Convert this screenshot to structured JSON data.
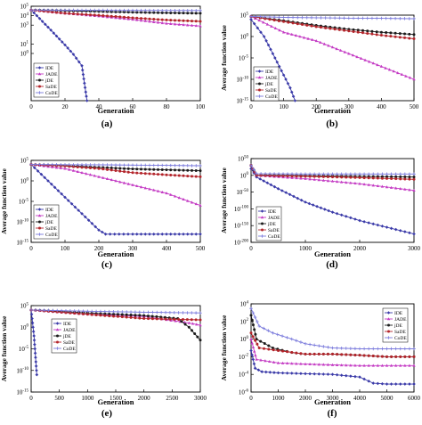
{
  "legend_colors": {
    "IDE": "#3a3aa8",
    "JADE": "#c43cc4",
    "jDE": "#1a1a1a",
    "SaDE": "#b3242a",
    "CoDE": "#7b7bdc"
  },
  "chart_data": [
    {
      "type": "line",
      "panel_label": "(a)",
      "xlabel": "Generation",
      "ylabel": "",
      "scale": "log",
      "ylim": [
        1e-05,
        100000.0
      ],
      "xlim": [
        0,
        100
      ],
      "x_ticks": [
        "0",
        "20",
        "40",
        "60",
        "80",
        "100"
      ],
      "y_ticks": [
        "10^5",
        "10^4",
        "10^3",
        "10^1",
        "10^0"
      ],
      "legend": [
        "IDE",
        "JADE",
        "jDE",
        "SaDE",
        "CoDE"
      ],
      "series": [
        {
          "name": "IDE",
          "x": [
            0,
            5,
            10,
            15,
            20,
            25,
            30,
            33
          ],
          "y": [
            40000,
            5000,
            600,
            70,
            8,
            0.8,
            0.05,
            1e-05
          ]
        },
        {
          "name": "JADE",
          "x": [
            0,
            20,
            40,
            60,
            80,
            100
          ],
          "y": [
            40000,
            18000,
            9000,
            4000,
            1500,
            800
          ]
        },
        {
          "name": "jDE",
          "x": [
            0,
            20,
            40,
            60,
            80,
            100
          ],
          "y": [
            40000,
            34000,
            28000,
            23000,
            20000,
            18000
          ]
        },
        {
          "name": "SaDE",
          "x": [
            0,
            20,
            40,
            60,
            80,
            100
          ],
          "y": [
            40000,
            18000,
            11000,
            6000,
            3500,
            2500
          ]
        },
        {
          "name": "CoDE",
          "x": [
            0,
            20,
            40,
            60,
            80,
            100
          ],
          "y": [
            40000,
            38000,
            37000,
            36000,
            35500,
            35000
          ]
        }
      ]
    },
    {
      "type": "line",
      "panel_label": "(b)",
      "xlabel": "Generation",
      "ylabel": "Average function value",
      "scale": "log",
      "ylim": [
        1e-15,
        100000.0
      ],
      "xlim": [
        0,
        500
      ],
      "x_ticks": [
        "0",
        "100",
        "200",
        "300",
        "400",
        "500"
      ],
      "y_ticks": [
        "10^5",
        "10^0",
        "10^-5",
        "10^-10",
        "10^-15"
      ],
      "legend": [
        "IDE",
        "JADE",
        "jDE",
        "SaDE",
        "CoDE"
      ],
      "series": [
        {
          "name": "IDE",
          "x": [
            0,
            20,
            40,
            60,
            80,
            100,
            120,
            135
          ],
          "y": [
            10000.0,
            100.0,
            1.0,
            0.001,
            1e-06,
            1e-09,
            1e-12,
            1e-15
          ]
        },
        {
          "name": "JADE",
          "x": [
            0,
            100,
            200,
            300,
            400,
            500
          ],
          "y": [
            50000.0,
            10,
            0.1,
            0.0001,
            1e-07,
            1e-10
          ]
        },
        {
          "name": "jDE",
          "x": [
            0,
            100,
            200,
            300,
            400,
            500
          ],
          "y": [
            50000.0,
            5000,
            400,
            50,
            10,
            3
          ]
        },
        {
          "name": "SaDE",
          "x": [
            0,
            100,
            200,
            300,
            400,
            500
          ],
          "y": [
            50000.0,
            3000,
            200,
            20,
            2,
            0.3
          ]
        },
        {
          "name": "CoDE",
          "x": [
            0,
            100,
            200,
            300,
            400,
            500
          ],
          "y": [
            50000.0,
            30000.0,
            25000.0,
            20000.0,
            18000.0,
            15000.0
          ]
        }
      ]
    },
    {
      "type": "line",
      "panel_label": "(c)",
      "xlabel": "Generation",
      "ylabel": "Average function value",
      "scale": "log",
      "ylim": [
        1e-15,
        100000.0
      ],
      "xlim": [
        0,
        500
      ],
      "x_ticks": [
        "0",
        "100",
        "200",
        "300",
        "400",
        "500"
      ],
      "y_ticks": [
        "10^5",
        "10^0",
        "10^-5",
        "10^-10",
        "10^-15"
      ],
      "legend": [
        "IDE",
        "JADE",
        "jDE",
        "SaDE",
        "CoDE"
      ],
      "series": [
        {
          "name": "IDE",
          "x": [
            0,
            50,
            100,
            150,
            200,
            220,
            300,
            400,
            500
          ],
          "y": [
            10000.0,
            1.0,
            0.0001,
            1e-08,
            1e-12,
            1e-13,
            1e-13,
            1e-13,
            1e-13
          ]
        },
        {
          "name": "JADE",
          "x": [
            0,
            100,
            200,
            300,
            400,
            500
          ],
          "y": [
            10000.0,
            1000,
            10,
            0.1,
            0.001,
            1e-06
          ]
        },
        {
          "name": "jDE",
          "x": [
            0,
            100,
            200,
            300,
            400,
            500
          ],
          "y": [
            10000.0,
            5000,
            2000,
            800,
            500,
            300
          ]
        },
        {
          "name": "SaDE",
          "x": [
            0,
            100,
            200,
            300,
            400,
            500
          ],
          "y": [
            10000.0,
            4000,
            1000,
            100,
            30,
            10
          ]
        },
        {
          "name": "CoDE",
          "x": [
            0,
            100,
            200,
            300,
            400,
            500
          ],
          "y": [
            10000.0,
            9000,
            8000,
            7000,
            6000,
            5000
          ]
        }
      ]
    },
    {
      "type": "line",
      "panel_label": "(d)",
      "xlabel": "Generation",
      "ylabel": "Average function value",
      "scale": "log",
      "ylim": [
        1e-200,
        1e+50
      ],
      "xlim": [
        0,
        3000
      ],
      "x_ticks": [
        "0",
        "1000",
        "2000",
        "3000"
      ],
      "y_ticks": [
        "10^50",
        "10^0",
        "10^-50",
        "10^-100",
        "10^-150",
        "10^-200"
      ],
      "legend": [
        "IDE",
        "JADE",
        "jDE",
        "SaDE",
        "CoDE"
      ],
      "series": [
        {
          "name": "IDE",
          "x": [
            0,
            100,
            500,
            1000,
            1500,
            2000,
            2500,
            3000
          ],
          "y": [
            1e+20,
            1e-05,
            1e-40,
            1e-80,
            1e-110,
            1e-135,
            1e-155,
            1e-175
          ]
        },
        {
          "name": "JADE",
          "x": [
            0,
            100,
            1000,
            2000,
            3000
          ],
          "y": [
            1e+30,
            1.0,
            1e-10,
            1e-25,
            1e-45
          ]
        },
        {
          "name": "jDE",
          "x": [
            0,
            100,
            1000,
            2000,
            3000
          ],
          "y": [
            1e+30,
            10.0,
            0.1,
            0.001,
            1e-05
          ]
        },
        {
          "name": "SaDE",
          "x": [
            0,
            100,
            1000,
            2000,
            3000
          ],
          "y": [
            1e+30,
            1.0,
            0.001,
            1e-07,
            1e-12
          ]
        },
        {
          "name": "CoDE",
          "x": [
            0,
            100,
            1000,
            2000,
            3000
          ],
          "y": [
            1e+30,
            100000.0,
            10000.0,
            10000.0,
            10000.0
          ]
        }
      ]
    },
    {
      "type": "line",
      "panel_label": "(e)",
      "xlabel": "Generation",
      "ylabel": "Average function value",
      "scale": "log",
      "ylim": [
        1e-15,
        100000.0
      ],
      "xlim": [
        0,
        3000
      ],
      "x_ticks": [
        "0",
        "500",
        "1000",
        "1500",
        "2000",
        "2500",
        "3000"
      ],
      "y_ticks": [
        "10^5",
        "10^0",
        "10^-5",
        "10^-10",
        "10^-15"
      ],
      "legend": [
        "IDE",
        "JADE",
        "jDE",
        "SaDE",
        "CoDE"
      ],
      "series": [
        {
          "name": "IDE",
          "x": [
            0,
            50,
            100
          ],
          "y": [
            10000.0,
            0.01,
            1e-11
          ]
        },
        {
          "name": "JADE",
          "x": [
            0,
            1000,
            2000,
            2800,
            3000
          ],
          "y": [
            10000.0,
            1000,
            300,
            10,
            3
          ]
        },
        {
          "name": "jDE",
          "x": [
            0,
            1000,
            2000,
            2600,
            2800,
            3000
          ],
          "y": [
            10000.0,
            2000,
            500,
            100,
            1,
            0.001
          ]
        },
        {
          "name": "SaDE",
          "x": [
            0,
            1000,
            2000,
            3000
          ],
          "y": [
            10000.0,
            1000,
            100,
            50
          ]
        },
        {
          "name": "CoDE",
          "x": [
            0,
            1000,
            2000,
            3000
          ],
          "y": [
            10000.0,
            5000,
            3000,
            2000
          ]
        }
      ]
    },
    {
      "type": "line",
      "panel_label": "(f)",
      "xlabel": "Generation",
      "ylabel": "Average function value",
      "scale": "log",
      "ylim": [
        1e-06,
        10000.0
      ],
      "xlim": [
        0,
        6000
      ],
      "x_ticks": [
        "0",
        "1000",
        "2000",
        "3000",
        "4000",
        "5000",
        "6000"
      ],
      "y_ticks": [
        "10^4",
        "10^2",
        "10^0",
        "10^-2",
        "10^-4",
        "10^-6"
      ],
      "legend": [
        "IDE",
        "JADE",
        "jDE",
        "SaDE",
        "CoDE"
      ],
      "series": [
        {
          "name": "IDE",
          "x": [
            0,
            150,
            400,
            1000,
            2000,
            3000,
            4000,
            4500,
            5000,
            6000
          ],
          "y": [
            0.05,
            0.0005,
            0.0002,
            0.00015,
            0.00012,
            0.0001,
            5e-05,
            1e-05,
            8e-06,
            8e-06
          ]
        },
        {
          "name": "JADE",
          "x": [
            0,
            200,
            1000,
            2000,
            3000,
            4000,
            5000,
            6000
          ],
          "y": [
            1,
            0.005,
            0.002,
            0.0015,
            0.0012,
            0.001,
            0.001,
            0.001
          ]
        },
        {
          "name": "jDE",
          "x": [
            0,
            200,
            800,
            1500,
            2000,
            3000,
            4000,
            5000,
            6000
          ],
          "y": [
            500,
            1,
            0.1,
            0.03,
            0.02,
            0.02,
            0.015,
            0.01,
            0.01
          ]
        },
        {
          "name": "SaDE",
          "x": [
            0,
            300,
            1000,
            2000,
            3000,
            4000,
            5000,
            6000
          ],
          "y": [
            5,
            0.1,
            0.05,
            0.02,
            0.02,
            0.015,
            0.01,
            0.01
          ]
        },
        {
          "name": "CoDE",
          "x": [
            0,
            300,
            800,
            1500,
            2000,
            3000,
            4000,
            5000,
            6000
          ],
          "y": [
            3000,
            30,
            5,
            1,
            0.3,
            0.1,
            0.08,
            0.08,
            0.08
          ]
        }
      ]
    }
  ]
}
